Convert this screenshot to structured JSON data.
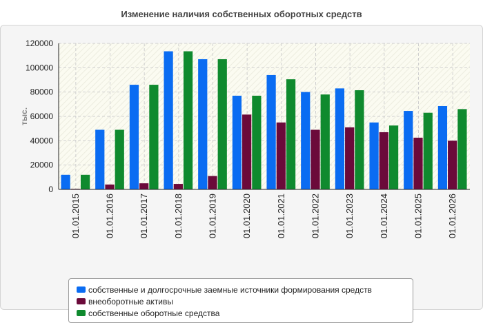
{
  "chart_data": {
    "type": "bar",
    "title": "Изменение наличия собственных оборотных средств",
    "xlabel": "",
    "ylabel": "тыс.",
    "ylim": [
      0,
      120000
    ],
    "yticks": [
      0,
      20000,
      40000,
      60000,
      80000,
      100000,
      120000
    ],
    "grid": true,
    "legend_position": "bottom",
    "categories": [
      "01.01.2015",
      "01.01.2016",
      "01.01.2017",
      "01.01.2018",
      "01.01.2019",
      "01.01.2020",
      "01.01.2021",
      "01.01.2022",
      "01.01.2023",
      "01.01.2024",
      "01.01.2025",
      "01.01.2026"
    ],
    "series": [
      {
        "name": "собственные и долгосрочные заемные источники формирования средств",
        "color": "#0a6cf2",
        "values": [
          12000,
          49000,
          86000,
          113500,
          107000,
          77000,
          94000,
          80000,
          83000,
          55000,
          64500,
          68500
        ]
      },
      {
        "name": "внеоборотные активы",
        "color": "#6b0a3a",
        "values": [
          500,
          4000,
          5000,
          4500,
          11000,
          61500,
          55000,
          49000,
          51000,
          47000,
          42500,
          40000
        ]
      },
      {
        "name": "собственные оборотные средства",
        "color": "#0f8a2e",
        "values": [
          12000,
          49000,
          86000,
          113500,
          107000,
          77000,
          90500,
          78000,
          81500,
          52500,
          63000,
          66000
        ]
      }
    ]
  }
}
